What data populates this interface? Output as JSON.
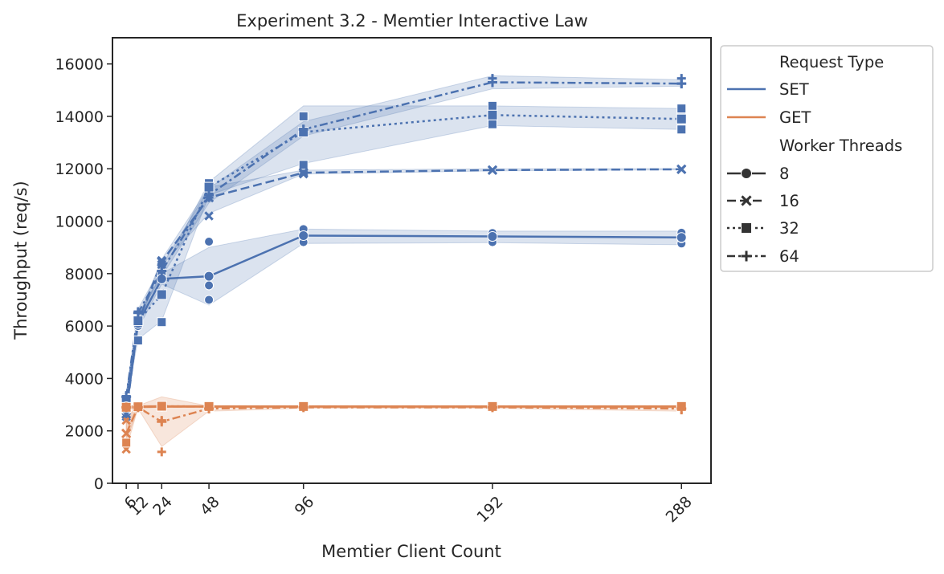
{
  "chart_data": {
    "type": "line",
    "title": "Experiment 3.2 - Memtier Interactive Law",
    "xlabel": "Memtier Client Count",
    "ylabel": "Throughput (req/s)",
    "x": [
      6,
      12,
      24,
      48,
      96,
      192,
      288
    ],
    "x_ticks": [
      "6",
      "12",
      "24",
      "48",
      "96",
      "192",
      "288"
    ],
    "xlim": [
      -1,
      303
    ],
    "ylim": [
      0,
      17000
    ],
    "y_ticks": [
      "0",
      "2000",
      "4000",
      "6000",
      "8000",
      "10000",
      "12000",
      "14000",
      "16000"
    ],
    "grid": false,
    "confidence_bands": true,
    "colors": {
      "SET": "#4c72b0",
      "GET": "#dd8452"
    },
    "legend": {
      "placement": "outside-right",
      "hue_title": "Request Type",
      "hue_entries": [
        "SET",
        "GET"
      ],
      "style_title": "Worker Threads",
      "style_entries": [
        "8",
        "16",
        "32",
        "64"
      ]
    },
    "series": [
      {
        "request_type": "SET",
        "worker_threads": "8",
        "marker": "circle",
        "dash": "solid",
        "values": [
          2800,
          6100,
          7800,
          7900,
          9450,
          9420,
          9380
        ],
        "low": [
          2600,
          5900,
          7600,
          6800,
          9150,
          9180,
          9100
        ],
        "high": [
          3000,
          6300,
          8000,
          9000,
          9700,
          9620,
          9620
        ],
        "points": [
          [
            6,
            2750
          ],
          [
            6,
            2850
          ],
          [
            12,
            6000
          ],
          [
            12,
            6200
          ],
          [
            24,
            7800
          ],
          [
            24,
            7850
          ],
          [
            48,
            7000
          ],
          [
            48,
            7550
          ],
          [
            48,
            9220
          ],
          [
            96,
            9200
          ],
          [
            96,
            9600
          ],
          [
            96,
            9700
          ],
          [
            192,
            9200
          ],
          [
            192,
            9400
          ],
          [
            192,
            9550
          ],
          [
            288,
            9150
          ],
          [
            288,
            9350
          ],
          [
            288,
            9560
          ]
        ]
      },
      {
        "request_type": "SET",
        "worker_threads": "16",
        "marker": "x",
        "dash": "dashed",
        "values": [
          2650,
          6150,
          8450,
          10900,
          11850,
          11950,
          11980
        ],
        "low": [
          2500,
          6000,
          8300,
          10300,
          11800,
          11920,
          11960
        ],
        "high": [
          2800,
          6300,
          8550,
          11300,
          11950,
          12000,
          12010
        ],
        "points": [
          [
            6,
            2550
          ],
          [
            6,
            2750
          ],
          [
            12,
            6200
          ],
          [
            24,
            8350
          ],
          [
            24,
            8500
          ],
          [
            48,
            10200
          ],
          [
            48,
            11200
          ],
          [
            96,
            11800
          ],
          [
            96,
            11900
          ],
          [
            192,
            11950
          ],
          [
            288,
            11980
          ]
        ]
      },
      {
        "request_type": "SET",
        "worker_threads": "32",
        "marker": "square",
        "dash": "dotted",
        "values": [
          3200,
          6200,
          7200,
          11300,
          13400,
          14050,
          13900
        ],
        "low": [
          3000,
          5500,
          6200,
          11000,
          12200,
          13650,
          13500
        ],
        "high": [
          3400,
          6400,
          8000,
          11500,
          14400,
          14400,
          14300
        ],
        "points": [
          [
            6,
            3250
          ],
          [
            12,
            5450
          ],
          [
            12,
            6200
          ],
          [
            24,
            6150
          ],
          [
            24,
            7200
          ],
          [
            24,
            8000
          ],
          [
            48,
            11450
          ],
          [
            96,
            12150
          ],
          [
            96,
            13400
          ],
          [
            96,
            14000
          ],
          [
            192,
            13700
          ],
          [
            192,
            14100
          ],
          [
            192,
            14400
          ],
          [
            288,
            13500
          ],
          [
            288,
            13950
          ],
          [
            288,
            14300
          ]
        ]
      },
      {
        "request_type": "SET",
        "worker_threads": "64",
        "marker": "plus",
        "dash": "dashdot",
        "values": [
          3300,
          6500,
          8100,
          11000,
          13500,
          15300,
          15250
        ],
        "low": [
          3150,
          6350,
          7900,
          10700,
          13250,
          15050,
          15150
        ],
        "high": [
          3450,
          6650,
          8300,
          11250,
          13800,
          15550,
          15400
        ],
        "points": [
          [
            6,
            3350
          ],
          [
            12,
            6550
          ],
          [
            24,
            8100
          ],
          [
            48,
            10900
          ],
          [
            96,
            13500
          ],
          [
            192,
            15300
          ],
          [
            192,
            15450
          ],
          [
            288,
            15250
          ],
          [
            288,
            15450
          ]
        ]
      },
      {
        "request_type": "GET",
        "worker_threads": "8",
        "marker": "circle",
        "dash": "solid",
        "values": [
          2920,
          2920,
          2930,
          2930,
          2930,
          2930,
          2930
        ],
        "low": [
          2880,
          2880,
          2900,
          2900,
          2900,
          2900,
          2900
        ],
        "high": [
          2960,
          2960,
          2960,
          2960,
          2960,
          2960,
          2960
        ],
        "points": [
          [
            6,
            2920
          ],
          [
            12,
            2920
          ],
          [
            24,
            2930
          ],
          [
            48,
            2930
          ],
          [
            96,
            2930
          ],
          [
            192,
            2930
          ],
          [
            288,
            2930
          ]
        ]
      },
      {
        "request_type": "GET",
        "worker_threads": "16",
        "marker": "x",
        "dash": "dashed",
        "values": [
          1900,
          2920,
          2930,
          2930,
          2930,
          2930,
          2930
        ],
        "low": [
          1300,
          2880,
          2900,
          2900,
          2900,
          2900,
          2900
        ],
        "high": [
          2500,
          2960,
          2960,
          2960,
          2960,
          2960,
          2960
        ],
        "points": [
          [
            6,
            1300
          ],
          [
            6,
            2400
          ],
          [
            12,
            2920
          ],
          [
            24,
            2930
          ],
          [
            48,
            2930
          ],
          [
            96,
            2930
          ],
          [
            192,
            2930
          ],
          [
            288,
            2930
          ]
        ]
      },
      {
        "request_type": "GET",
        "worker_threads": "32",
        "marker": "square",
        "dash": "dotted",
        "values": [
          2900,
          2920,
          2940,
          2930,
          2930,
          2930,
          2930
        ],
        "low": [
          1600,
          2880,
          2900,
          2900,
          2900,
          2900,
          2900
        ],
        "high": [
          2960,
          2960,
          2970,
          2960,
          2960,
          2960,
          2960
        ],
        "points": [
          [
            6,
            1550
          ],
          [
            12,
            2930
          ],
          [
            24,
            2950
          ],
          [
            48,
            2930
          ],
          [
            96,
            2930
          ],
          [
            192,
            2930
          ],
          [
            288,
            2930
          ]
        ]
      },
      {
        "request_type": "GET",
        "worker_threads": "64",
        "marker": "plus",
        "dash": "dashdot",
        "values": [
          2900,
          2900,
          2350,
          2850,
          2900,
          2900,
          2850
        ],
        "low": [
          2800,
          2850,
          1400,
          2750,
          2860,
          2860,
          2750
        ],
        "high": [
          2960,
          2960,
          3300,
          2950,
          2950,
          2950,
          2950
        ],
        "points": [
          [
            6,
            2900
          ],
          [
            12,
            2900
          ],
          [
            24,
            1200
          ],
          [
            24,
            2400
          ],
          [
            48,
            2850
          ],
          [
            96,
            2900
          ],
          [
            192,
            2900
          ],
          [
            288,
            2800
          ]
        ]
      }
    ]
  }
}
